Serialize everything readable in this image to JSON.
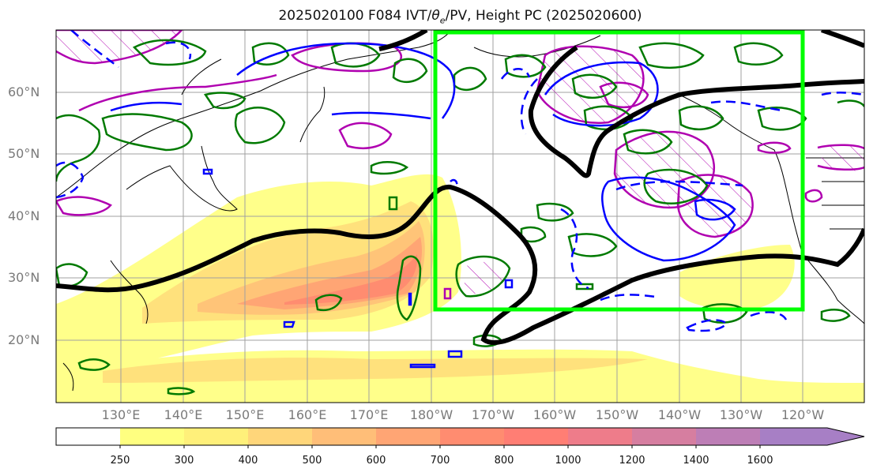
{
  "title_main": "2025020100 F084 IVT/",
  "title_theta": "θ",
  "title_theta_sub": "e",
  "title_rest": "/PV, Height PC (2025020600)",
  "lat_labels": [
    "60°N",
    "50°N",
    "40°N",
    "30°N",
    "20°N"
  ],
  "lon_labels": [
    "130°E",
    "140°E",
    "150°E",
    "160°E",
    "170°E",
    "180°W",
    "170°W",
    "160°W",
    "150°W",
    "140°W",
    "130°W",
    "120°W"
  ],
  "colorbar": {
    "levels": [
      "250",
      "300",
      "400",
      "500",
      "600",
      "700",
      "800",
      "1000",
      "1200",
      "1400",
      "1600"
    ],
    "colors": [
      "#ffffff",
      "#ffff80",
      "#fff07a",
      "#ffd67a",
      "#ffbe78",
      "#ffa574",
      "#ff8c70",
      "#ff7e74",
      "#ee7c8a",
      "#d67ea0",
      "#bd7eb6",
      "#a77fc5"
    ]
  },
  "colors": {
    "box": "#00ff00",
    "height_pc": "#000000",
    "pv": "#b000b0",
    "theta_e": "#007a00",
    "ivt_contour": "#0000ff",
    "grid": "#a0a0a0"
  }
}
